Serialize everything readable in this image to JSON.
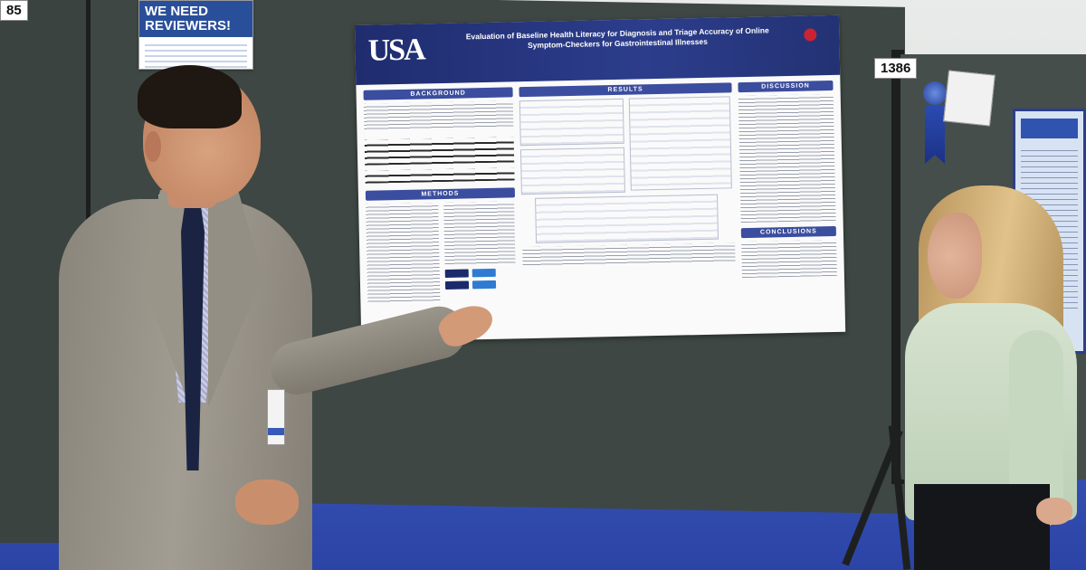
{
  "scene": {
    "type": "photo",
    "colors": {
      "floor": "#2b44a6",
      "board": "#3e4743",
      "poster_header": "#1f2c6e",
      "accent_red": "#c0282d"
    }
  },
  "booth": {
    "number": "1386",
    "neighbor_number_fragment": "85"
  },
  "flyer": {
    "headline": "WE NEED REVIEWERS!"
  },
  "poster": {
    "logo_text": "USA",
    "title": "Evaluation of Baseline Health Literacy for Diagnosis and Triage Accuracy of Online Symptom-Checkers for Gastrointestinal Illnesses",
    "sections": {
      "background": "BACKGROUND",
      "methods": "METHODS",
      "results": "RESULTS",
      "discussion": "DISCUSSION",
      "conclusions": "CONCLUSIONS"
    }
  }
}
